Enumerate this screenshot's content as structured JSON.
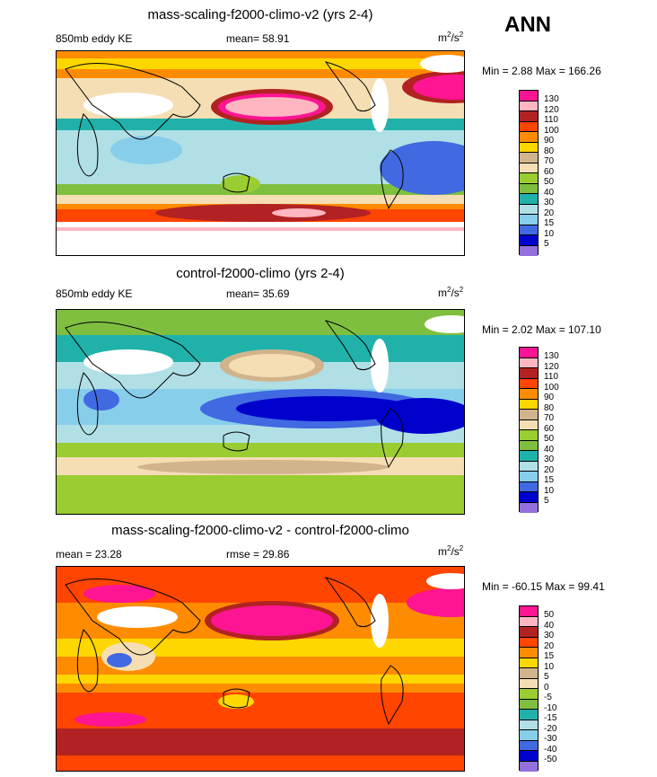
{
  "season": "ANN",
  "panels": [
    {
      "title": "mass-scaling-f2000-climo-v2 (yrs 2-4)",
      "left_label": "850mb eddy KE",
      "center_label": "mean=  58.91",
      "units_base": "m",
      "units_sup1": "2",
      "units_mid": "/s",
      "units_sup2": "2",
      "minmax": "Min =   2.88 Max = 166.26",
      "levels": [
        "130",
        "120",
        "110",
        "100",
        "90",
        "80",
        "70",
        "60",
        "50",
        "40",
        "30",
        "20",
        "15",
        "10",
        "5"
      ],
      "colors": [
        "#ff1493",
        "#ffb6c1",
        "#b22222",
        "#ff4500",
        "#ff8c00",
        "#ffd700",
        "#d2b48c",
        "#f5deb3",
        "#9acd32",
        "#7fbf3f",
        "#20b2aa",
        "#b0e0e6",
        "#87ceeb",
        "#4169e1",
        "#0000cd",
        "#9370db"
      ]
    },
    {
      "title": "control-f2000-climo (yrs 2-4)",
      "left_label": "850mb eddy KE",
      "center_label": "mean=  35.69",
      "units_base": "m",
      "units_sup1": "2",
      "units_mid": "/s",
      "units_sup2": "2",
      "minmax": "Min =   2.02 Max = 107.10",
      "levels": [
        "130",
        "120",
        "110",
        "100",
        "90",
        "80",
        "70",
        "60",
        "50",
        "40",
        "30",
        "20",
        "15",
        "10",
        "5"
      ],
      "colors": [
        "#ff1493",
        "#ffb6c1",
        "#b22222",
        "#ff4500",
        "#ff8c00",
        "#ffd700",
        "#d2b48c",
        "#f5deb3",
        "#9acd32",
        "#7fbf3f",
        "#20b2aa",
        "#b0e0e6",
        "#87ceeb",
        "#4169e1",
        "#0000cd",
        "#9370db"
      ]
    },
    {
      "title": "mass-scaling-f2000-climo-v2 - control-f2000-climo",
      "left_label": "mean =  23.28",
      "center_label": "rmse =  29.86",
      "units_base": "m",
      "units_sup1": "2",
      "units_mid": "/s",
      "units_sup2": "2",
      "minmax": "Min = -60.15 Max =  99.41",
      "levels": [
        "50",
        "40",
        "30",
        "20",
        "15",
        "10",
        "5",
        "0",
        "-5",
        "-10",
        "-15",
        "-20",
        "-30",
        "-40",
        "-50"
      ],
      "colors": [
        "#ff1493",
        "#ffb6c1",
        "#b22222",
        "#ff4500",
        "#ff8c00",
        "#ffd700",
        "#d2b48c",
        "#f5deb3",
        "#9acd32",
        "#7fbf3f",
        "#20b2aa",
        "#b0e0e6",
        "#87ceeb",
        "#4169e1",
        "#0000cd",
        "#9370db"
      ]
    }
  ]
}
